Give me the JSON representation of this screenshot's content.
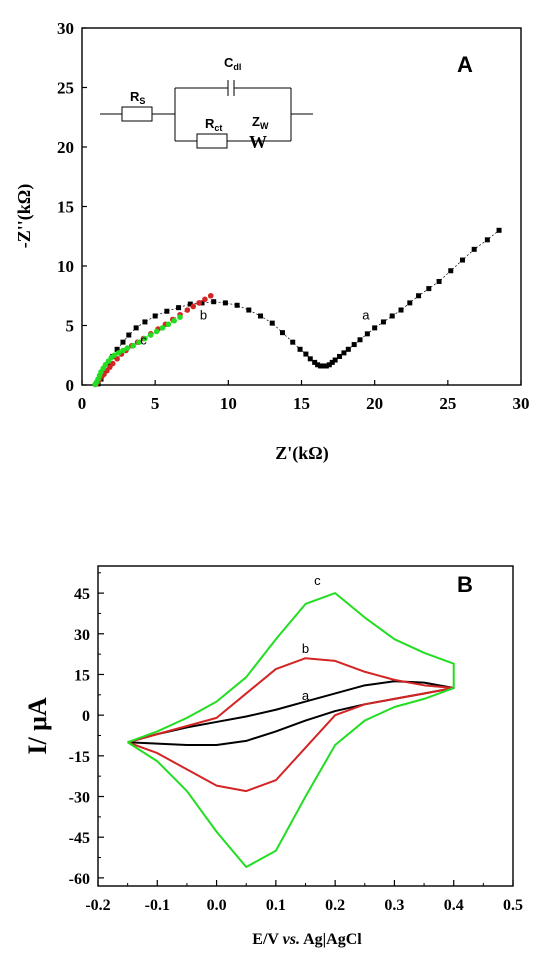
{
  "chart_data": [
    {
      "type": "scatter",
      "panel_label": "A",
      "xlabel": "Z'(kΩ)",
      "ylabel": "-Z''(kΩ)",
      "xlim": [
        0,
        30
      ],
      "ylim": [
        0,
        30
      ],
      "xticks": [
        "0",
        "5",
        "10",
        "15",
        "20",
        "25",
        "30"
      ],
      "yticks": [
        "0",
        "5",
        "10",
        "15",
        "20",
        "25",
        "30"
      ],
      "circuit": {
        "rs": "R",
        "rs_sub": "S",
        "cdl": "C",
        "cdl_sub": "dl",
        "rct": "R",
        "rct_sub": "ct",
        "zw": "Z",
        "zw_sub": "W",
        "w": "W"
      },
      "series": [
        {
          "name": "a",
          "color": "#000000",
          "marker": "square",
          "label": "a",
          "label_at": [
            19.4,
            5.5
          ],
          "x": [
            1.1,
            1.3,
            1.5,
            1.8,
            2.1,
            2.4,
            2.8,
            3.2,
            3.7,
            4.3,
            5.0,
            5.8,
            6.6,
            7.4,
            8.2,
            9.0,
            9.8,
            10.6,
            11.4,
            12.2,
            13.0,
            13.7,
            14.4,
            14.9,
            15.3,
            15.6,
            15.9,
            16.1,
            16.3,
            16.5,
            16.7,
            16.9,
            17.1,
            17.3,
            17.6,
            17.9,
            18.2,
            18.6,
            19.0,
            19.5,
            20.0,
            20.6,
            21.2,
            21.8,
            22.4,
            23.0,
            23.7,
            24.4,
            25.2,
            26.0,
            26.8,
            27.7,
            28.5
          ],
          "y": [
            0.1,
            0.5,
            1.0,
            1.7,
            2.4,
            3.0,
            3.6,
            4.2,
            4.8,
            5.3,
            5.8,
            6.2,
            6.5,
            6.8,
            6.9,
            7.0,
            6.9,
            6.7,
            6.3,
            5.8,
            5.2,
            4.4,
            3.6,
            3.0,
            2.6,
            2.2,
            1.9,
            1.7,
            1.6,
            1.6,
            1.6,
            1.7,
            1.9,
            2.1,
            2.4,
            2.7,
            3.0,
            3.4,
            3.8,
            4.3,
            4.8,
            5.3,
            5.8,
            6.3,
            6.9,
            7.5,
            8.1,
            8.7,
            9.6,
            10.5,
            11.4,
            12.2,
            13.0
          ]
        },
        {
          "name": "b",
          "color": "#d42424",
          "marker": "circle",
          "label": "b",
          "label_at": [
            8.3,
            5.5
          ],
          "x": [
            0.9,
            1.0,
            1.1,
            1.2,
            1.35,
            1.5,
            1.7,
            1.9,
            2.1,
            2.4,
            2.7,
            3.0,
            3.4,
            3.8,
            4.2,
            4.7,
            5.2,
            5.7,
            6.2,
            6.7,
            7.2,
            7.6,
            8.0,
            8.4,
            8.8
          ],
          "y": [
            0.05,
            0.15,
            0.3,
            0.5,
            0.7,
            0.9,
            1.2,
            1.5,
            1.8,
            2.2,
            2.6,
            2.9,
            3.3,
            3.6,
            3.9,
            4.3,
            4.7,
            5.1,
            5.5,
            5.9,
            6.3,
            6.6,
            6.9,
            7.2,
            7.5
          ]
        },
        {
          "name": "c",
          "color": "#22dd22",
          "marker": "circle",
          "label": "c",
          "label_at": [
            4.2,
            3.4
          ],
          "x": [
            0.9,
            1.0,
            1.1,
            1.2,
            1.3,
            1.45,
            1.6,
            1.8,
            2.0,
            2.2,
            2.5,
            2.8,
            3.1,
            3.5,
            3.9,
            4.3,
            4.7,
            5.1,
            5.5,
            5.9,
            6.3,
            6.7
          ],
          "y": [
            0.05,
            0.25,
            0.5,
            0.8,
            1.1,
            1.4,
            1.7,
            2.0,
            2.3,
            2.5,
            2.7,
            2.9,
            3.1,
            3.3,
            3.6,
            3.9,
            4.2,
            4.5,
            4.8,
            5.1,
            5.4,
            5.7
          ]
        }
      ]
    },
    {
      "type": "line",
      "panel_label": "B",
      "xlabel": "E/V vs. Ag|AgCl",
      "xlabel_parts": [
        "E/V ",
        "vs.",
        " Ag|AgCl"
      ],
      "ylabel": "I/ μA",
      "xlim": [
        -0.2,
        0.5
      ],
      "ylim": [
        -63,
        55
      ],
      "xticks": [
        "-0.2",
        "-0.1",
        "0.0",
        "0.1",
        "0.2",
        "0.3",
        "0.4",
        "0.5"
      ],
      "yticks": [
        "45",
        "30",
        "15",
        "0",
        "-15",
        "-30",
        "-45",
        "-60"
      ],
      "series": [
        {
          "name": "a",
          "color": "#000000",
          "label": "a",
          "label_at": [
            0.15,
            5.5
          ],
          "x": [
            -0.15,
            -0.1,
            -0.05,
            0.0,
            0.05,
            0.1,
            0.15,
            0.2,
            0.25,
            0.3,
            0.35,
            0.4,
            0.35,
            0.3,
            0.25,
            0.2,
            0.15,
            0.1,
            0.05,
            0.0,
            -0.05,
            -0.1,
            -0.15
          ],
          "y": [
            -10,
            -7,
            -4.5,
            -2.5,
            -0.5,
            2,
            5,
            8,
            11,
            12.5,
            12,
            10,
            8,
            6,
            4,
            1.5,
            -2,
            -6,
            -9.5,
            -11,
            -11,
            -10.5,
            -10
          ]
        },
        {
          "name": "b",
          "color": "#d42424",
          "label": "b",
          "label_at": [
            0.15,
            23
          ],
          "x": [
            -0.15,
            -0.1,
            -0.05,
            0.0,
            0.05,
            0.1,
            0.15,
            0.2,
            0.25,
            0.3,
            0.35,
            0.4,
            0.35,
            0.3,
            0.25,
            0.2,
            0.15,
            0.1,
            0.05,
            0.0,
            -0.05,
            -0.1,
            -0.15
          ],
          "y": [
            -10,
            -7,
            -4,
            -1,
            8,
            17,
            21,
            20,
            16,
            13,
            11,
            10,
            8,
            6,
            4,
            0,
            -12,
            -24,
            -28,
            -26,
            -20,
            -14,
            -10
          ]
        },
        {
          "name": "c",
          "color": "#22dd22",
          "label": "c",
          "label_at": [
            0.17,
            48
          ],
          "x": [
            -0.15,
            -0.1,
            -0.05,
            0.0,
            0.05,
            0.1,
            0.15,
            0.2,
            0.25,
            0.3,
            0.35,
            0.4,
            0.4,
            0.35,
            0.3,
            0.25,
            0.2,
            0.15,
            0.1,
            0.05,
            0.0,
            -0.05,
            -0.1,
            -0.15
          ],
          "y": [
            -10,
            -6,
            -1,
            5,
            14,
            28,
            41,
            45,
            36,
            28,
            23,
            19,
            10,
            6,
            3,
            -2,
            -11,
            -30,
            -50,
            -56,
            -43,
            -28,
            -17,
            -10
          ]
        }
      ]
    }
  ]
}
